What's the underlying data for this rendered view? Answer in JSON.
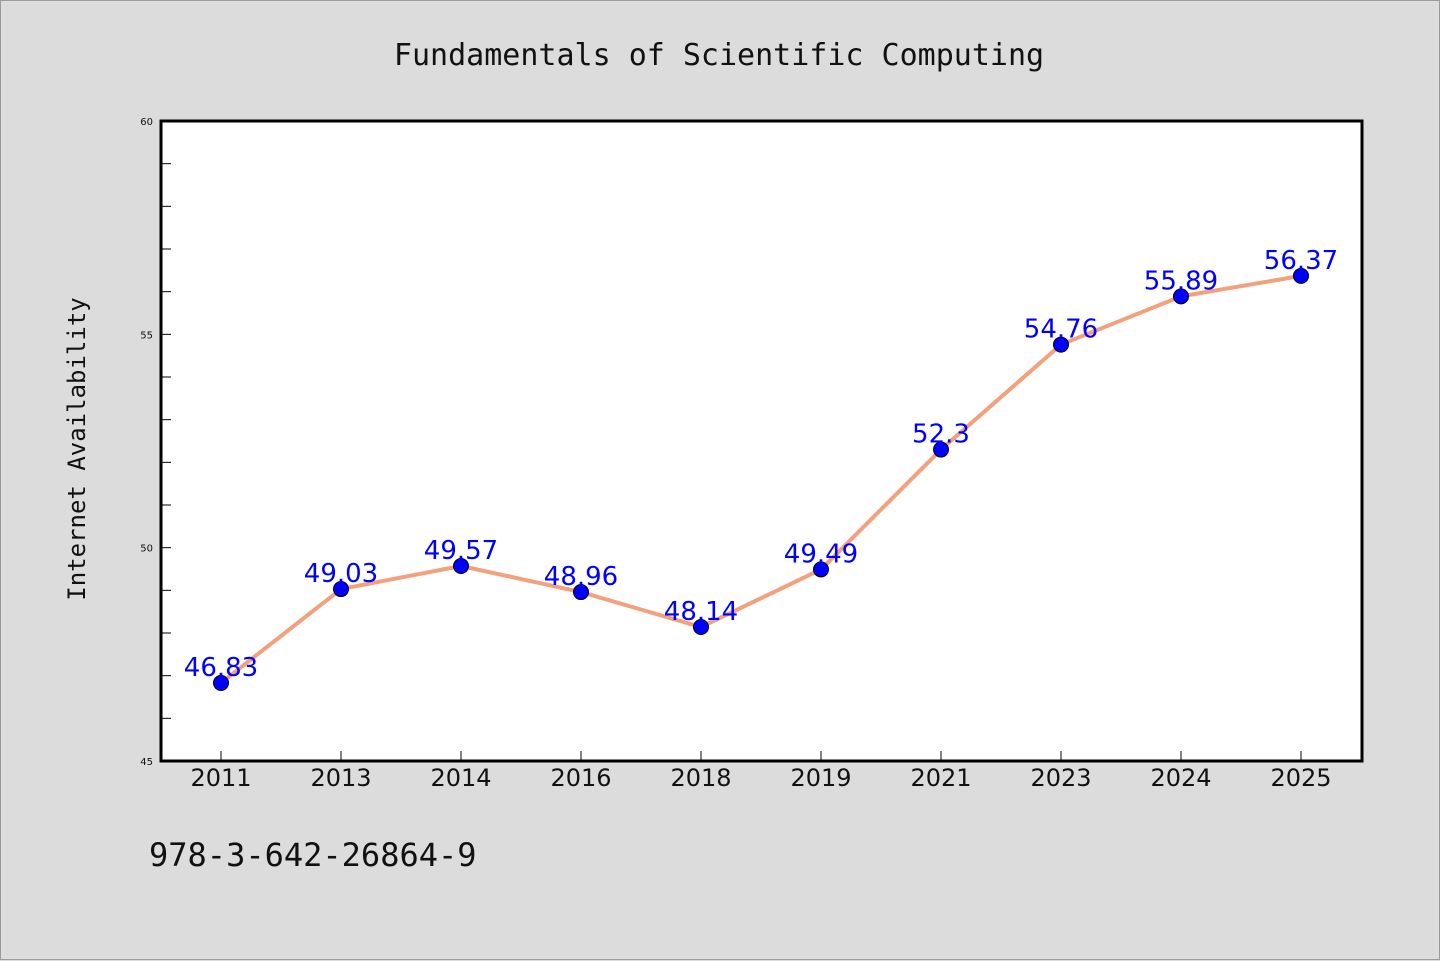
{
  "chart_data": {
    "type": "line",
    "title": "Fundamentals of Scientific Computing",
    "xlabel": "",
    "ylabel": "Internet Availability",
    "categories": [
      "2011",
      "2013",
      "2014",
      "2016",
      "2018",
      "2019",
      "2021",
      "2023",
      "2024",
      "2025"
    ],
    "series": [
      {
        "values": [
          46.83,
          49.03,
          49.57,
          48.96,
          48.14,
          49.49,
          52.3,
          54.76,
          55.89,
          56.37
        ],
        "labels": [
          "46.83",
          "49.03",
          "49.57",
          "48.96",
          "48.14",
          "49.49",
          "52.3",
          "54.76",
          "55.89",
          "56.37"
        ]
      }
    ],
    "ylim": [
      45,
      60
    ],
    "yticks": [
      "45",
      "50",
      "55",
      "60"
    ],
    "grid": false,
    "legend": "none"
  },
  "footer": {
    "isbn": "978-3-642-26864-9"
  },
  "colors": {
    "background": "#dcdcdc",
    "plot_area": "#ffffff",
    "line": "#f4a07c",
    "marker": "#0000ff",
    "label": "#0000ff"
  }
}
